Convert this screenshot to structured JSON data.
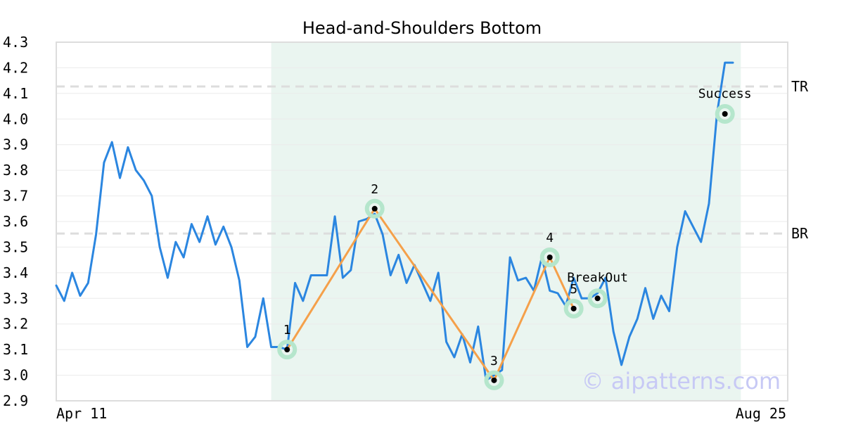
{
  "chart_data": {
    "type": "line",
    "title": "Head-and-Shoulders Bottom",
    "ylim": [
      2.9,
      4.3
    ],
    "y_ticks": [
      "4.3",
      "4.2",
      "4.1",
      "4.0",
      "3.9",
      "3.8",
      "3.7",
      "3.6",
      "3.5",
      "3.4",
      "3.3",
      "3.2",
      "3.1",
      "3.0",
      "2.9"
    ],
    "x_labels": {
      "start": "Apr 11",
      "end": "Aug 25"
    },
    "grid": true,
    "series": [
      {
        "values": [
          3.35,
          3.29,
          3.4,
          3.31,
          3.36,
          3.55,
          3.83,
          3.91,
          3.77,
          3.89,
          3.8,
          3.76,
          3.7,
          3.5,
          3.38,
          3.52,
          3.46,
          3.59,
          3.52,
          3.62,
          3.51,
          3.58,
          3.5,
          3.37,
          3.11,
          3.15,
          3.3,
          3.11,
          3.11,
          3.1,
          3.36,
          3.29,
          3.39,
          3.39,
          3.39,
          3.62,
          3.38,
          3.41,
          3.6,
          3.61,
          3.63,
          3.55,
          3.39,
          3.47,
          3.36,
          3.43,
          3.36,
          3.29,
          3.4,
          3.13,
          3.07,
          3.16,
          3.05,
          3.19,
          2.98,
          3.0,
          3.02,
          3.46,
          3.37,
          3.38,
          3.33,
          3.46,
          3.33,
          3.32,
          3.27,
          3.38,
          3.3,
          3.3,
          3.32,
          3.38,
          3.17,
          3.04,
          3.15,
          3.22,
          3.34,
          3.22,
          3.31,
          3.25,
          3.5,
          3.64,
          3.58,
          3.52,
          3.67,
          4.02,
          4.22,
          4.22
        ]
      }
    ],
    "pattern_points": [
      {
        "label": "1",
        "index": 29,
        "value": 3.1
      },
      {
        "label": "2",
        "index": 40,
        "value": 3.65
      },
      {
        "label": "3",
        "index": 55,
        "value": 2.98
      },
      {
        "label": "4",
        "index": 62,
        "value": 3.46
      },
      {
        "label": "5",
        "index": 65,
        "value": 3.26
      }
    ],
    "breakout": {
      "label": "BreakOut",
      "index": 68,
      "value": 3.3
    },
    "success": {
      "label": "Success",
      "index": 84,
      "value": 4.02
    },
    "reference_lines": [
      {
        "label": "TR",
        "value": 4.127
      },
      {
        "label": "BR",
        "value": 3.553
      }
    ],
    "highlight_range": {
      "start_index": 27,
      "end_index": 86
    },
    "watermark": "© aipatterns.com",
    "colors": {
      "price_line": "#2b86e0",
      "pattern_line": "#f5a04a",
      "marker_halo": "#b5e6cc",
      "highlight_band": "#eaf5f0",
      "reference_line": "#dddddd",
      "watermark": "#c7c9f5"
    }
  }
}
